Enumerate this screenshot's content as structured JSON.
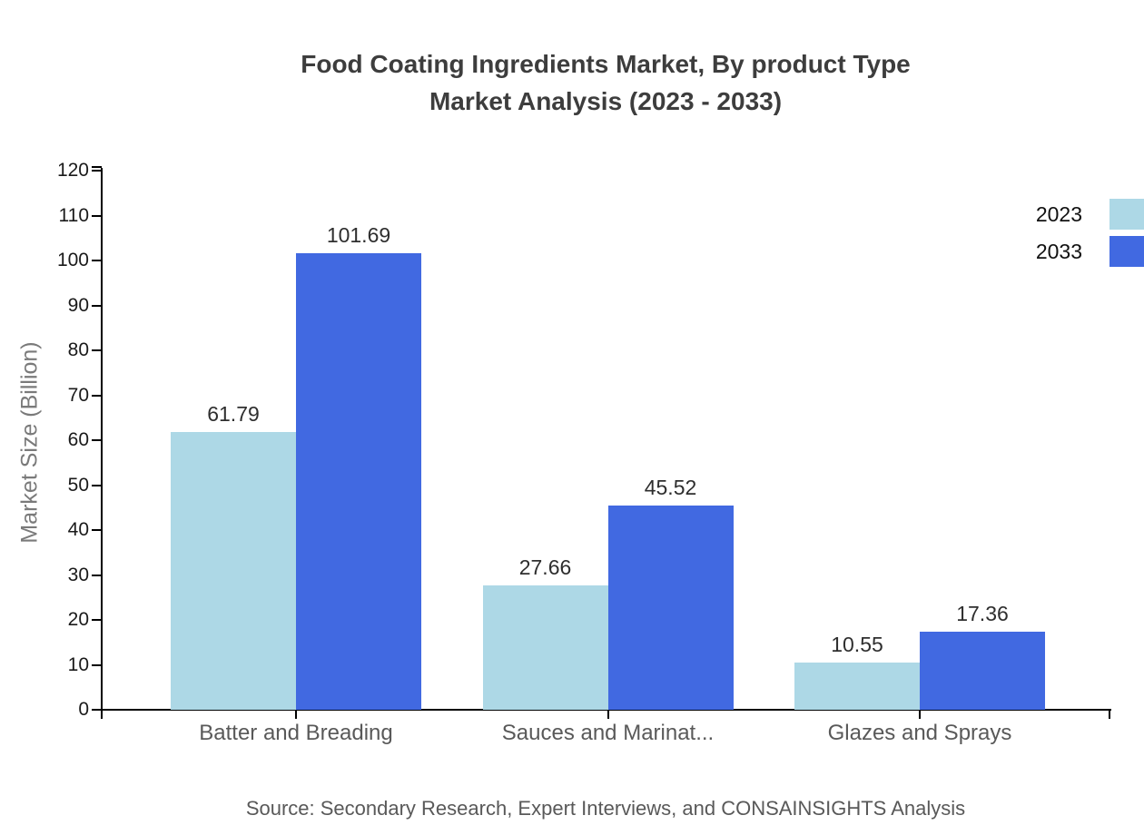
{
  "title": {
    "line1": "Food Coating Ingredients Market, By product Type",
    "line2": "Market Analysis (2023 - 2033)"
  },
  "source": "Source: Secondary Research, Expert Interviews, and CONSAINSIGHTS Analysis",
  "chart_data": {
    "type": "bar",
    "title": "Food Coating Ingredients Market, By product Type Market Analysis (2023 - 2033)",
    "categories": [
      "Batter and Breading",
      "Sauces and Marinat...",
      "Glazes and Sprays"
    ],
    "series": [
      {
        "name": "2023",
        "color": "#ADD8E6",
        "values": [
          61.79,
          27.66,
          10.55
        ]
      },
      {
        "name": "2033",
        "color": "#4169E1",
        "values": [
          101.69,
          45.52,
          17.36
        ]
      }
    ],
    "xlabel": "",
    "ylabel": "Market Size (Billion)",
    "ylim": [
      0,
      120
    ],
    "ytick_step": 10,
    "grid": false,
    "legend_position": "top-right",
    "value_labels": true,
    "value_label_decimals": 2
  }
}
